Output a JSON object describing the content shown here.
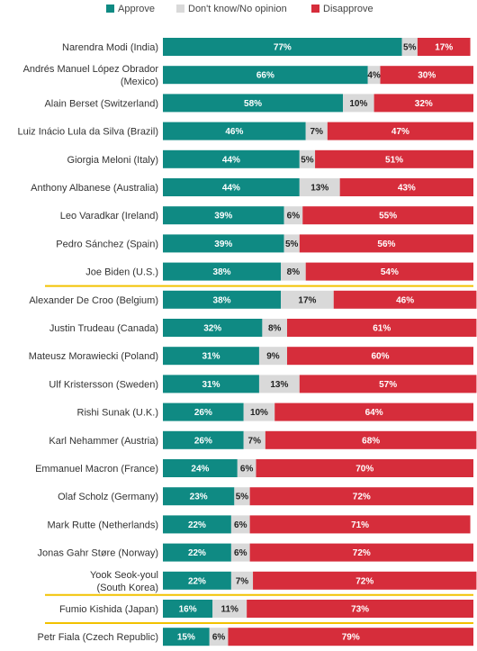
{
  "chart_data": {
    "type": "bar",
    "orientation": "horizontal",
    "stacked": true,
    "legend_position": "top",
    "grid": false,
    "xlim": [
      0,
      100
    ],
    "categories": [
      [
        "Narendra Modi (India)"
      ],
      [
        "Andrés Manuel López Obrador",
        "(Mexico)"
      ],
      [
        "Alain Berset (Switzerland)"
      ],
      [
        "Luiz Inácio Lula da Silva (Brazil)"
      ],
      [
        "Giorgia Meloni (Italy)"
      ],
      [
        "Anthony Albanese (Australia)"
      ],
      [
        "Leo Varadkar (Ireland)"
      ],
      [
        "Pedro Sánchez (Spain)"
      ],
      [
        "Joe Biden (U.S.)"
      ],
      [
        "Alexander De Croo (Belgium)"
      ],
      [
        "Justin Trudeau (Canada)"
      ],
      [
        "Mateusz Morawiecki (Poland)"
      ],
      [
        "Ulf Kristersson (Sweden)"
      ],
      [
        "Rishi Sunak (U.K.)"
      ],
      [
        "Karl Nehammer (Austria)"
      ],
      [
        "Emmanuel Macron (France)"
      ],
      [
        "Olaf Scholz (Germany)"
      ],
      [
        "Mark Rutte (Netherlands)"
      ],
      [
        "Jonas Gahr Støre (Norway)"
      ],
      [
        "Yook Seok-youl",
        "(South Korea)"
      ],
      [
        "Fumio Kishida (Japan)"
      ],
      [
        "Petr Fiala (Czech Republic)"
      ]
    ],
    "highlighted_categories": [
      "Joe Biden (U.S.)",
      "Yook Seok-youl (South Korea)",
      "Fumio Kishida (Japan)"
    ],
    "series": [
      {
        "name": "Approve",
        "color": "#0f8a83",
        "values": [
          77,
          66,
          58,
          46,
          44,
          44,
          39,
          39,
          38,
          38,
          32,
          31,
          31,
          26,
          26,
          24,
          23,
          22,
          22,
          22,
          16,
          15
        ]
      },
      {
        "name": "Don't know/No opinion",
        "color": "#d9d9d9",
        "values": [
          5,
          4,
          10,
          7,
          5,
          13,
          6,
          5,
          8,
          17,
          8,
          9,
          13,
          10,
          7,
          6,
          5,
          6,
          6,
          7,
          11,
          6
        ]
      },
      {
        "name": "Disapprove",
        "color": "#d62d3b",
        "values": [
          17,
          30,
          32,
          47,
          51,
          43,
          55,
          56,
          54,
          46,
          61,
          60,
          57,
          64,
          68,
          70,
          72,
          71,
          72,
          72,
          73,
          79
        ]
      }
    ],
    "highlight_color": "#f2c200"
  }
}
